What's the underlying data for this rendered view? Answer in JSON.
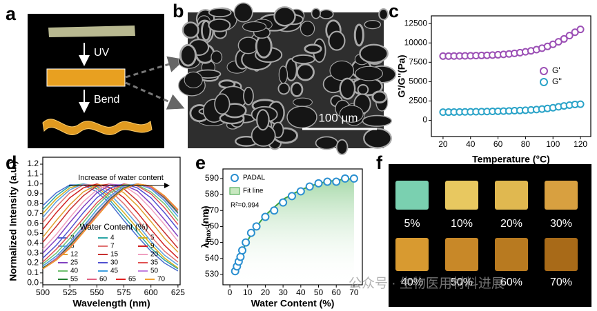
{
  "panel_labels": [
    "a",
    "b",
    "c",
    "d",
    "e",
    "f"
  ],
  "panel_a": {
    "steps": [
      "UV",
      "Bend"
    ]
  },
  "panel_b": {
    "scale_bar": "100 μm"
  },
  "chart_data": [
    {
      "type": "scatter",
      "xlabel": "Temperature (°C)",
      "ylabel": "G'/G''(Pa)",
      "x": [
        20,
        24,
        28,
        32,
        36,
        40,
        44,
        48,
        52,
        56,
        60,
        64,
        68,
        72,
        76,
        80,
        84,
        88,
        92,
        96,
        100,
        104,
        108,
        112,
        116,
        120
      ],
      "series": [
        {
          "name": "G'",
          "color": "#9b4fb5",
          "mark": "circle",
          "values": [
            8300,
            8300,
            8310,
            8320,
            8330,
            8340,
            8360,
            8380,
            8400,
            8430,
            8470,
            8520,
            8580,
            8650,
            8740,
            8850,
            8980,
            9130,
            9320,
            9550,
            9820,
            10150,
            10520,
            10950,
            11380,
            11750
          ]
        },
        {
          "name": "G''",
          "color": "#2aa3c8",
          "mark": "circle",
          "values": [
            1050,
            1060,
            1070,
            1080,
            1090,
            1100,
            1110,
            1120,
            1130,
            1150,
            1170,
            1190,
            1210,
            1240,
            1270,
            1300,
            1340,
            1390,
            1450,
            1530,
            1620,
            1740,
            1860,
            1960,
            2050,
            2080
          ]
        }
      ],
      "xlim": [
        11.5,
        127.5
      ],
      "ylim": [
        -2100,
        13500
      ],
      "xticks": [
        20,
        40,
        60,
        80,
        100,
        120
      ],
      "yticks": [
        0,
        2500,
        5000,
        7500,
        10000,
        12500
      ]
    },
    {
      "type": "line",
      "xlabel": "Wavelength (nm)",
      "ylabel": "Normalized Intensity (a.u.)",
      "annotation": "Increase of water content",
      "legend_title": "Water Content (%)",
      "x": [
        500,
        512.5,
        525,
        537.5,
        550,
        562.5,
        575,
        587.5,
        600,
        612.5,
        625
      ],
      "series": [
        {
          "name": "3",
          "color": "#4a6fd0",
          "values": [
            0.78,
            0.91,
            0.99,
            0.99,
            0.92,
            0.8,
            0.63,
            0.47,
            0.32,
            0.2,
            0.12
          ]
        },
        {
          "name": "4",
          "color": "#2aa5a5",
          "values": [
            0.74,
            0.88,
            0.98,
            1.0,
            0.95,
            0.83,
            0.67,
            0.51,
            0.35,
            0.23,
            0.14
          ]
        },
        {
          "name": "5",
          "color": "#d4b020",
          "values": [
            0.7,
            0.85,
            0.96,
            1.0,
            0.97,
            0.86,
            0.71,
            0.55,
            0.39,
            0.25,
            0.15
          ]
        },
        {
          "name": "6",
          "color": "#5aa0e0",
          "values": [
            0.66,
            0.82,
            0.94,
            1.0,
            0.98,
            0.89,
            0.75,
            0.59,
            0.42,
            0.28,
            0.18
          ]
        },
        {
          "name": "7",
          "color": "#e07070",
          "values": [
            0.61,
            0.77,
            0.91,
            0.99,
            0.99,
            0.93,
            0.8,
            0.64,
            0.47,
            0.32,
            0.21
          ]
        },
        {
          "name": "9",
          "color": "#d02020",
          "values": [
            0.54,
            0.71,
            0.86,
            0.96,
            1.0,
            0.96,
            0.86,
            0.71,
            0.54,
            0.38,
            0.25
          ]
        },
        {
          "name": "12",
          "color": "#e0a030",
          "values": [
            0.46,
            0.63,
            0.79,
            0.92,
            0.99,
            0.99,
            0.91,
            0.78,
            0.62,
            0.45,
            0.31
          ]
        },
        {
          "name": "15",
          "color": "#c83030",
          "values": [
            0.41,
            0.57,
            0.74,
            0.88,
            0.98,
            1.0,
            0.95,
            0.83,
            0.67,
            0.51,
            0.35
          ]
        },
        {
          "name": "20",
          "color": "#f0a0c0",
          "values": [
            0.34,
            0.49,
            0.66,
            0.82,
            0.94,
            1.0,
            0.98,
            0.89,
            0.75,
            0.59,
            0.42
          ]
        },
        {
          "name": "25",
          "color": "#8040c0",
          "values": [
            0.3,
            0.44,
            0.61,
            0.77,
            0.91,
            0.99,
            0.99,
            0.93,
            0.8,
            0.64,
            0.47
          ]
        },
        {
          "name": "30",
          "color": "#5050d0",
          "values": [
            0.25,
            0.38,
            0.54,
            0.71,
            0.86,
            0.96,
            1.0,
            0.96,
            0.86,
            0.71,
            0.54
          ]
        },
        {
          "name": "35",
          "color": "#e05050",
          "values": [
            0.21,
            0.34,
            0.49,
            0.65,
            0.81,
            0.93,
            1.0,
            0.98,
            0.9,
            0.76,
            0.59
          ]
        },
        {
          "name": "40",
          "color": "#70c070",
          "values": [
            0.19,
            0.3,
            0.45,
            0.61,
            0.78,
            0.91,
            0.99,
            0.99,
            0.92,
            0.8,
            0.63
          ]
        },
        {
          "name": "45",
          "color": "#40a0e0",
          "values": [
            0.17,
            0.27,
            0.41,
            0.57,
            0.74,
            0.88,
            0.98,
            1.0,
            0.95,
            0.83,
            0.67
          ]
        },
        {
          "name": "50",
          "color": "#c080e0",
          "values": [
            0.15,
            0.25,
            0.39,
            0.55,
            0.71,
            0.86,
            0.97,
            1.0,
            0.96,
            0.85,
            0.7
          ]
        },
        {
          "name": "55",
          "color": "#208030",
          "values": [
            0.15,
            0.24,
            0.38,
            0.53,
            0.7,
            0.85,
            0.96,
            1.0,
            0.97,
            0.86,
            0.71
          ]
        },
        {
          "name": "60",
          "color": "#e06080",
          "values": [
            0.14,
            0.24,
            0.36,
            0.52,
            0.69,
            0.84,
            0.95,
            1.0,
            0.97,
            0.87,
            0.73
          ]
        },
        {
          "name": "65",
          "color": "#e02020",
          "values": [
            0.14,
            0.23,
            0.35,
            0.51,
            0.67,
            0.83,
            0.95,
            1.0,
            0.98,
            0.88,
            0.74
          ]
        },
        {
          "name": "70",
          "color": "#f0a030",
          "values": [
            0.14,
            0.23,
            0.35,
            0.51,
            0.67,
            0.83,
            0.95,
            1.0,
            0.98,
            0.88,
            0.74
          ]
        }
      ],
      "xlim": [
        500,
        627
      ],
      "ylim": [
        -0.02,
        1.27
      ],
      "xticks": [
        500,
        525,
        550,
        575,
        600,
        625
      ],
      "yticks": [
        {
          "value": 0,
          "label": "0.0"
        },
        0.1,
        0.2,
        0.3,
        0.4,
        0.5,
        0.6,
        0.7,
        0.8,
        0.9,
        {
          "value": 1,
          "label": "1.0"
        },
        1.1,
        1.2
      ]
    },
    {
      "type": "scatter",
      "xlabel": "Water Content (%)",
      "ylabel": {
        "symbol": "λ",
        "subscript": "max",
        "unit": "(nm)"
      },
      "annotation": "R²=0.994",
      "x": [
        3,
        4,
        5,
        6,
        7,
        9,
        12,
        15,
        20,
        25,
        30,
        35,
        40,
        45,
        50,
        55,
        60,
        65,
        70
      ],
      "series": [
        {
          "name": "PADAL",
          "color": "#2a8fd0",
          "mark": "circle",
          "values": [
            532,
            535,
            538,
            541,
            545,
            550,
            556,
            560,
            566,
            570,
            575,
            579,
            582,
            585,
            587,
            588,
            588,
            590,
            590
          ]
        },
        {
          "name": "Fit line",
          "color": "#3aa040",
          "mark": "line",
          "values": [
            533,
            536,
            539,
            542,
            545,
            549,
            555,
            560,
            567,
            572,
            577,
            580,
            583,
            585,
            587,
            588,
            589,
            589.5,
            590
          ]
        }
      ],
      "xlim": [
        -3.9,
        74.7
      ],
      "ylim": [
        523.5,
        596
      ],
      "xticks": [
        0,
        10,
        20,
        30,
        40,
        50,
        60,
        70
      ],
      "yticks": [
        530,
        540,
        550,
        560,
        570,
        580,
        590
      ]
    }
  ],
  "panel_f": {
    "labels": [
      "5%",
      "10%",
      "20%",
      "30%",
      "40%",
      "50%",
      "60%",
      "70%"
    ],
    "watermark": "公众号 · 生物医用材料进展"
  }
}
